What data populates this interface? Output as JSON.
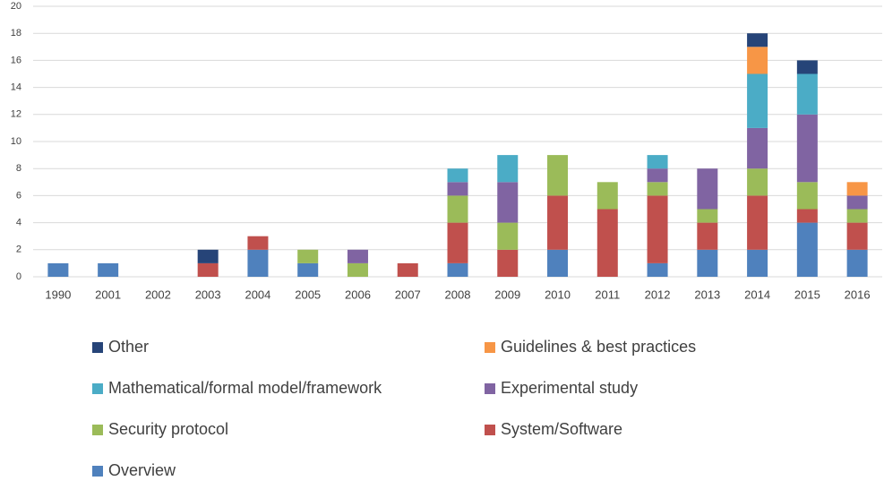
{
  "chart_data": {
    "type": "stacked_bar",
    "categories": [
      "1990",
      "2001",
      "2002",
      "2003",
      "2004",
      "2005",
      "2006",
      "2007",
      "2008",
      "2009",
      "2010",
      "2011",
      "2012",
      "2013",
      "2014",
      "2015",
      "2016"
    ],
    "series": [
      {
        "name": "Other",
        "color": "#264478",
        "values": [
          0,
          0,
          0,
          1,
          0,
          0,
          0,
          0,
          0,
          0,
          0,
          0,
          0,
          0,
          1,
          1,
          0
        ]
      },
      {
        "name": "Guidelines & best practices",
        "color": "#f79646",
        "values": [
          0,
          0,
          0,
          0,
          0,
          0,
          0,
          0,
          0,
          0,
          0,
          0,
          0,
          0,
          2,
          0,
          1
        ]
      },
      {
        "name": "Mathematical/formal model/framework",
        "color": "#4bacc6",
        "values": [
          0,
          0,
          0,
          0,
          0,
          0,
          0,
          0,
          1,
          2,
          0,
          0,
          1,
          0,
          4,
          3,
          0
        ]
      },
      {
        "name": "Experimental study",
        "color": "#8064a2",
        "values": [
          0,
          0,
          0,
          0,
          0,
          0,
          1,
          0,
          1,
          3,
          0,
          0,
          1,
          3,
          3,
          5,
          1
        ]
      },
      {
        "name": "Security protocol",
        "color": "#9bbb59",
        "values": [
          0,
          0,
          0,
          0,
          0,
          1,
          1,
          0,
          2,
          2,
          3,
          2,
          1,
          1,
          2,
          2,
          1
        ]
      },
      {
        "name": "System/Software",
        "color": "#c0504d",
        "values": [
          0,
          0,
          0,
          1,
          1,
          0,
          0,
          1,
          3,
          2,
          4,
          5,
          5,
          2,
          4,
          1,
          2
        ]
      },
      {
        "name": "Overview",
        "color": "#4f81bd",
        "values": [
          1,
          1,
          0,
          0,
          2,
          1,
          0,
          0,
          1,
          0,
          2,
          0,
          1,
          2,
          2,
          4,
          2
        ]
      }
    ],
    "ylim": [
      0,
      20
    ],
    "yticks": [
      0,
      2,
      4,
      6,
      8,
      10,
      12,
      14,
      16,
      18,
      20
    ],
    "grid": true
  }
}
